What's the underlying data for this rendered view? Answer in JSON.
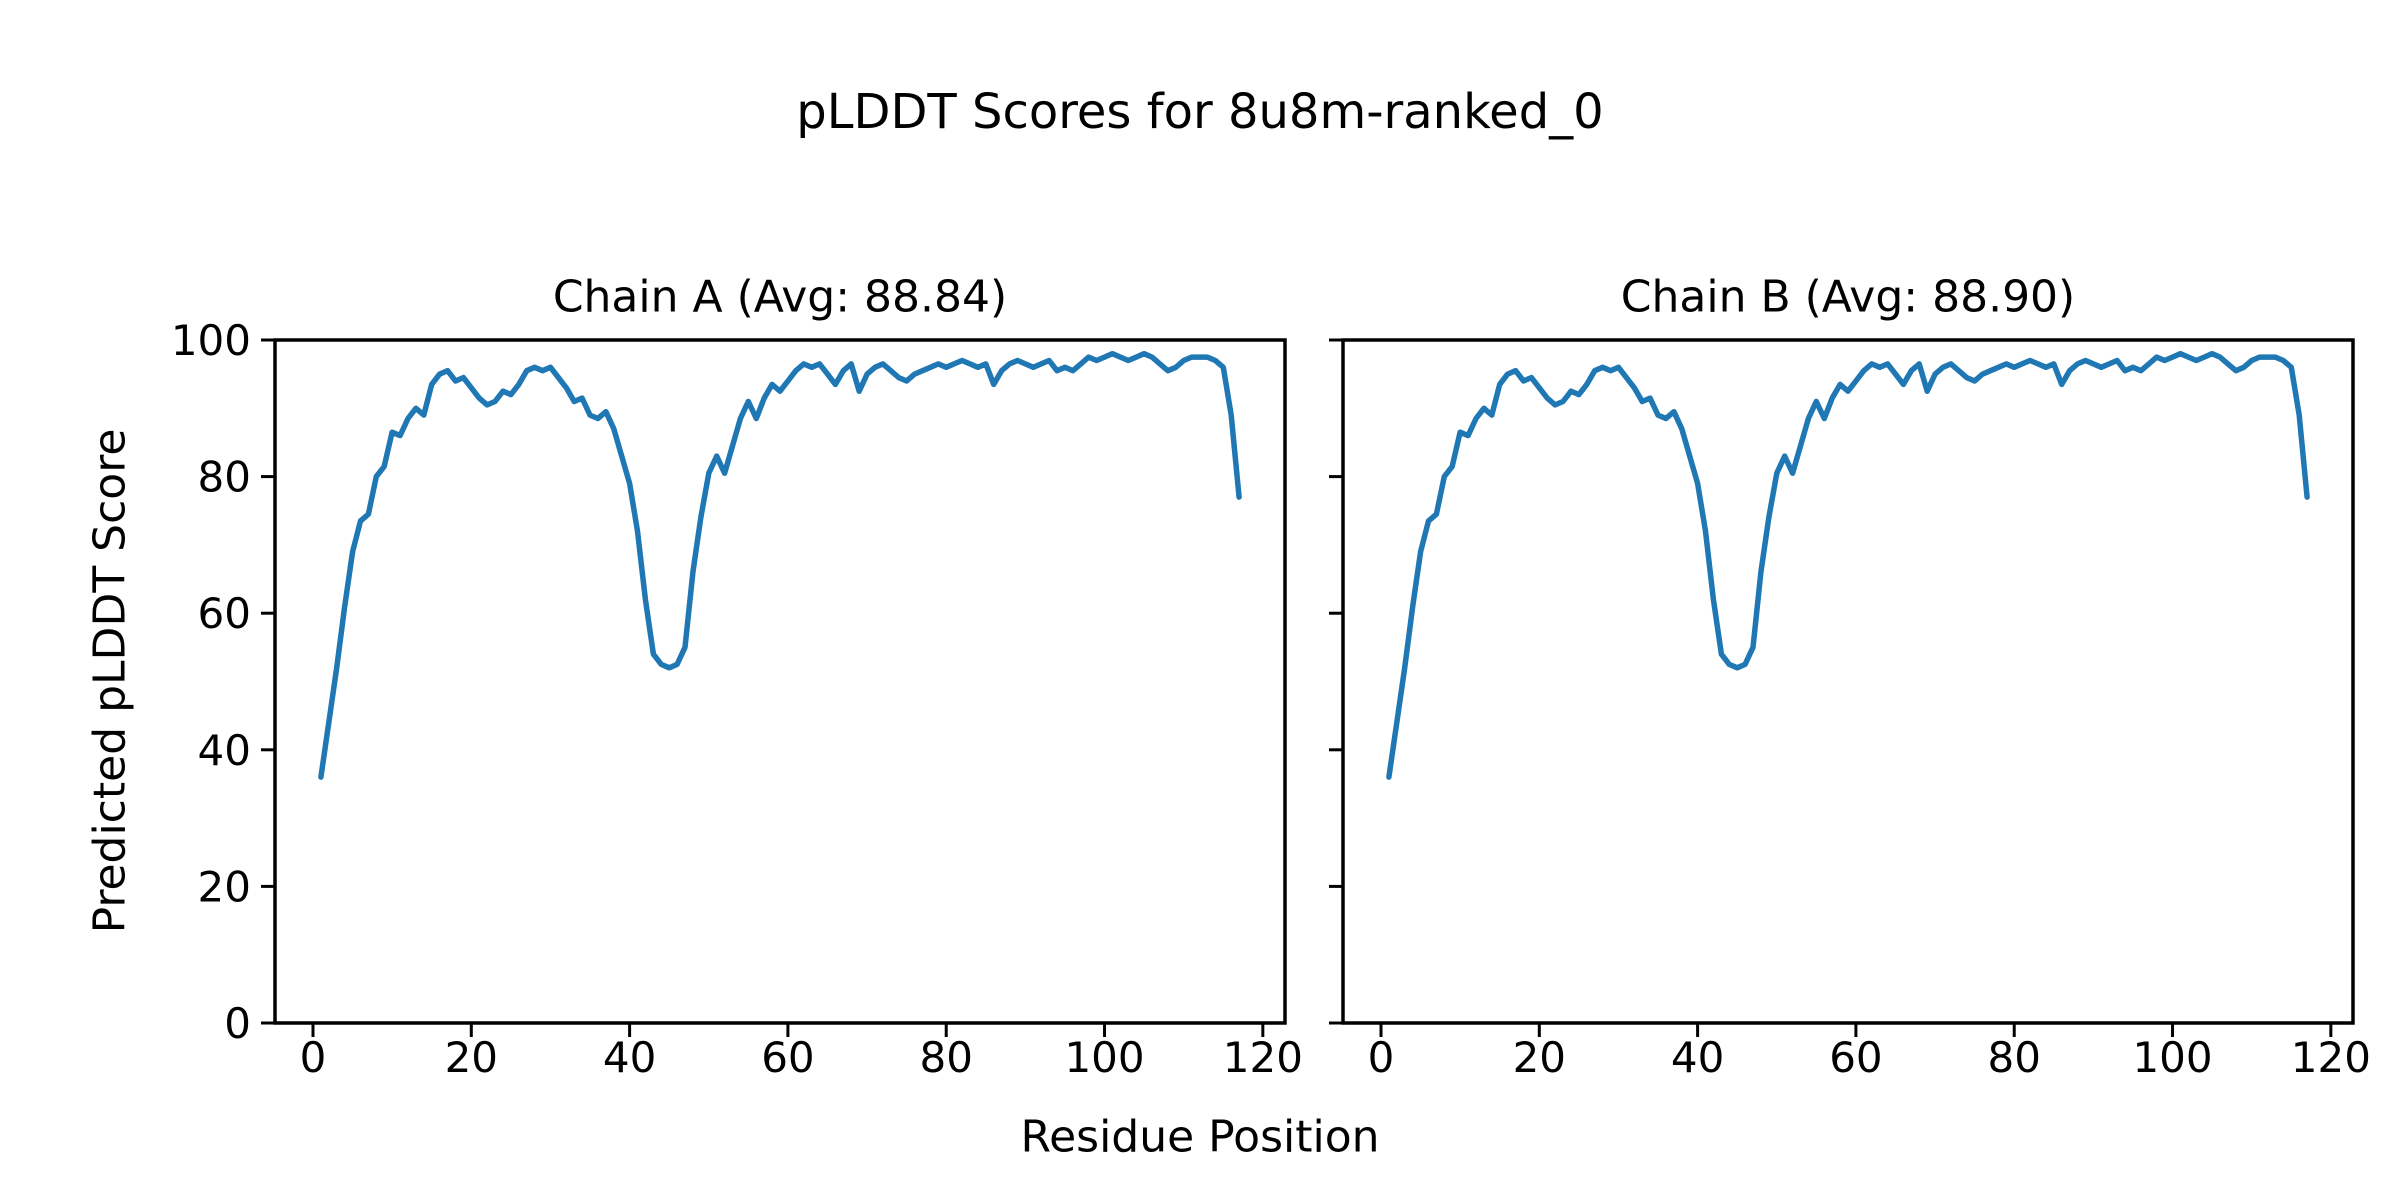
{
  "figure": {
    "suptitle": "pLDDT Scores for 8u8m-ranked_0",
    "background_color": "#ffffff",
    "text_color": "#000000"
  },
  "chart_data": {
    "type": "line",
    "suptitle": "pLDDT Scores for 8u8m-ranked_0",
    "x_label": "Residue Position",
    "y_label": "Predicted pLDDT Score",
    "line_color": "#1f77b4",
    "xlim": [
      -4.8,
      122.8
    ],
    "ylim": [
      0,
      100
    ],
    "x_ticks": [
      0,
      20,
      40,
      60,
      80,
      100,
      120
    ],
    "y_ticks": [
      0,
      20,
      40,
      60,
      80,
      100
    ],
    "x_start": 1,
    "grid": false,
    "legend": "none",
    "subplots": [
      {
        "chain": "A",
        "avg": "88.84",
        "title": "Chain A (Avg: 88.84)",
        "values": [
          36,
          44,
          52,
          61,
          69,
          73.5,
          74.5,
          80,
          81.5,
          86.5,
          86,
          88.5,
          90,
          89,
          93.5,
          95,
          95.5,
          94,
          94.5,
          93,
          91.5,
          90.5,
          91,
          92.5,
          92,
          93.5,
          95.5,
          96,
          95.5,
          96,
          94.5,
          93,
          91,
          91.5,
          89,
          88.5,
          89.5,
          87,
          83,
          79,
          72,
          62,
          54,
          52.5,
          52,
          52.5,
          55,
          66,
          74,
          80.5,
          83,
          80.5,
          84.5,
          88.5,
          91,
          88.5,
          91.5,
          93.5,
          92.5,
          94,
          95.5,
          96.5,
          96,
          96.5,
          95,
          93.5,
          95.5,
          96.5,
          92.5,
          95,
          96,
          96.5,
          95.5,
          94.5,
          94,
          95,
          95.5,
          96,
          96.5,
          96,
          96.5,
          97,
          96.5,
          96,
          96.5,
          93.5,
          95.5,
          96.5,
          97,
          96.5,
          96,
          96.5,
          97,
          95.5,
          96,
          95.5,
          96.5,
          97.5,
          97,
          97.5,
          98,
          97.5,
          97,
          97.5,
          98,
          97.5,
          96.5,
          95.5,
          96,
          97,
          97.5,
          97.5,
          97.5,
          97,
          96,
          89,
          77
        ]
      },
      {
        "chain": "B",
        "avg": "88.90",
        "title": "Chain B (Avg: 88.90)",
        "values": [
          36,
          44,
          52,
          61,
          69,
          73.5,
          74.5,
          80,
          81.5,
          86.5,
          86,
          88.5,
          90,
          89,
          93.5,
          95,
          95.5,
          94,
          94.5,
          93,
          91.5,
          90.5,
          91,
          92.5,
          92,
          93.5,
          95.5,
          96,
          95.5,
          96,
          94.5,
          93,
          91,
          91.5,
          89,
          88.5,
          89.5,
          87,
          83,
          79,
          72,
          62,
          54,
          52.5,
          52,
          52.5,
          55,
          66,
          74,
          80.5,
          83,
          80.5,
          84.5,
          88.5,
          91,
          88.5,
          91.5,
          93.5,
          92.5,
          94,
          95.5,
          96.5,
          96,
          96.5,
          95,
          93.5,
          95.5,
          96.5,
          92.5,
          95,
          96,
          96.5,
          95.5,
          94.5,
          94,
          95,
          95.5,
          96,
          96.5,
          96,
          96.5,
          97,
          96.5,
          96,
          96.5,
          93.5,
          95.5,
          96.5,
          97,
          96.5,
          96,
          96.5,
          97,
          95.5,
          96,
          95.5,
          96.5,
          97.5,
          97,
          97.5,
          98,
          97.5,
          97,
          97.5,
          98,
          97.5,
          96.5,
          95.5,
          96,
          97,
          97.5,
          97.5,
          97.5,
          97,
          96,
          89,
          77
        ]
      }
    ]
  }
}
